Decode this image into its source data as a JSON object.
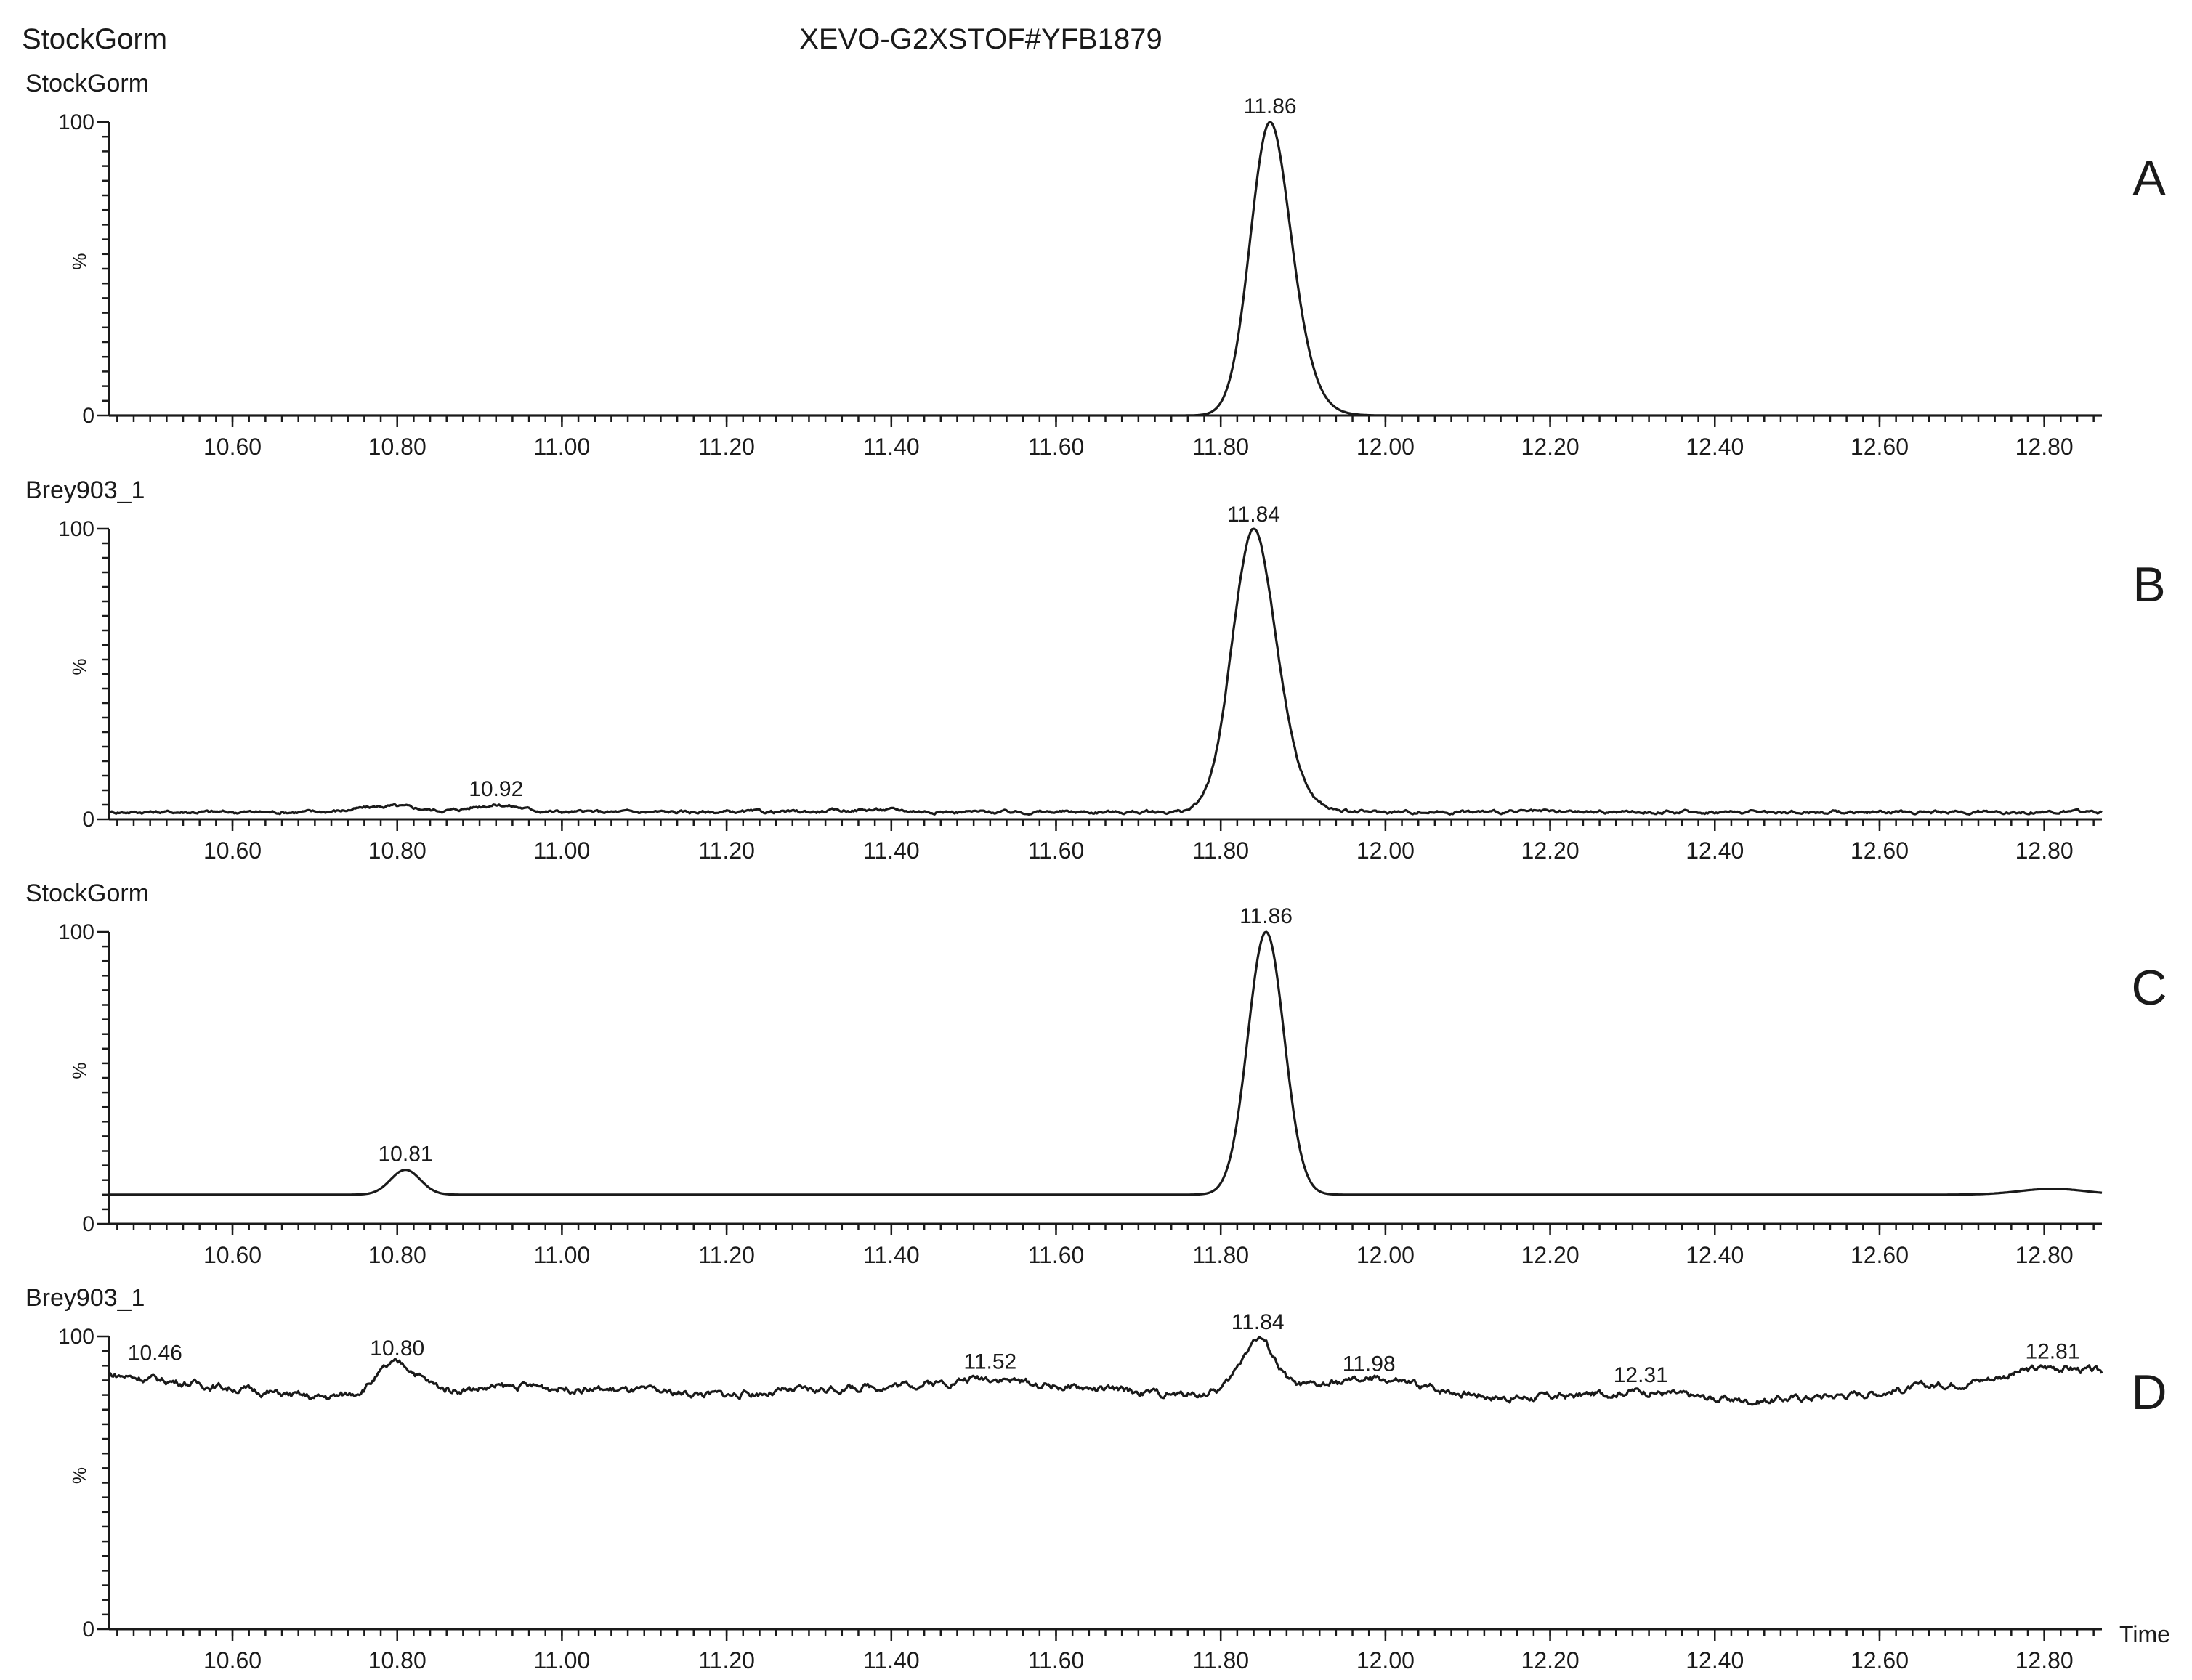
{
  "header": {
    "sample_name": "StockGorm",
    "instrument_title": "XEVO-G2XSTOF#YFB1879"
  },
  "chart_data": [
    {
      "type": "line",
      "panel_letter": "A",
      "trace_label": "StockGorm",
      "xlabel": "",
      "ylabel": "%",
      "xlim": [
        10.45,
        12.87
      ],
      "ylim": [
        0,
        100
      ],
      "x_ticks": [
        10.6,
        10.8,
        11.0,
        11.2,
        11.4,
        11.6,
        11.8,
        12.0,
        12.2,
        12.4,
        12.6,
        12.8
      ],
      "x_tick_labels": [
        "10.60",
        "10.80",
        "11.00",
        "11.20",
        "11.40",
        "11.60",
        "11.80",
        "12.00",
        "12.20",
        "12.40",
        "12.60",
        "12.80"
      ],
      "y_ticks": [
        0,
        100
      ],
      "y_tick_labels": [
        "0",
        "100"
      ],
      "baseline": 0,
      "noise": 0,
      "peaks": [
        {
          "x": 11.86,
          "height": 100,
          "width": 0.024,
          "tail": 0.07,
          "label": "11.86"
        }
      ]
    },
    {
      "type": "line",
      "panel_letter": "B",
      "trace_label": "Brey903_1",
      "xlabel": "",
      "ylabel": "%",
      "xlim": [
        10.45,
        12.87
      ],
      "ylim": [
        0,
        100
      ],
      "x_ticks": [
        10.6,
        10.8,
        11.0,
        11.2,
        11.4,
        11.6,
        11.8,
        12.0,
        12.2,
        12.4,
        12.6,
        12.8
      ],
      "x_tick_labels": [
        "10.60",
        "10.80",
        "11.00",
        "11.20",
        "11.40",
        "11.60",
        "11.80",
        "12.00",
        "12.20",
        "12.40",
        "12.60",
        "12.80"
      ],
      "y_ticks": [
        0,
        100
      ],
      "y_tick_labels": [
        "0",
        "100"
      ],
      "baseline": 2.5,
      "noise": 0.4,
      "peaks": [
        {
          "x": 11.84,
          "height": 97,
          "width": 0.026,
          "tail": 0.06,
          "label": "11.84"
        },
        {
          "x": 10.92,
          "height": 2.5,
          "width": 0.03,
          "label": "10.92"
        },
        {
          "x": 10.79,
          "height": 2.0,
          "width": 0.035,
          "label": ""
        },
        {
          "x": 11.38,
          "height": 0.8,
          "width": 0.04,
          "label": ""
        }
      ]
    },
    {
      "type": "line",
      "panel_letter": "C",
      "trace_label": "StockGorm",
      "xlabel": "",
      "ylabel": "%",
      "xlim": [
        10.45,
        12.87
      ],
      "ylim": [
        0,
        100
      ],
      "x_ticks": [
        10.6,
        10.8,
        11.0,
        11.2,
        11.4,
        11.6,
        11.8,
        12.0,
        12.2,
        12.4,
        12.6,
        12.8
      ],
      "x_tick_labels": [
        "10.60",
        "10.80",
        "11.00",
        "11.20",
        "11.40",
        "11.60",
        "11.80",
        "12.00",
        "12.20",
        "12.40",
        "12.60",
        "12.80"
      ],
      "y_ticks": [
        0,
        100
      ],
      "y_tick_labels": [
        "0",
        "100"
      ],
      "baseline": 10,
      "noise": 0,
      "peaks": [
        {
          "x": 11.855,
          "height": 90,
          "width": 0.022,
          "label": "11.86"
        },
        {
          "x": 10.81,
          "height": 8.5,
          "width": 0.018,
          "label": "10.81"
        },
        {
          "x": 12.81,
          "height": 2.0,
          "width": 0.04,
          "label": ""
        }
      ]
    },
    {
      "type": "line",
      "panel_letter": "D",
      "trace_label": "Brey903_1",
      "xlabel": "Time",
      "ylabel": "%",
      "xlim": [
        10.45,
        12.87
      ],
      "ylim": [
        0,
        100
      ],
      "x_ticks": [
        10.6,
        10.8,
        11.0,
        11.2,
        11.4,
        11.6,
        11.8,
        12.0,
        12.2,
        12.4,
        12.6,
        12.8
      ],
      "x_tick_labels": [
        "10.60",
        "10.80",
        "11.00",
        "11.20",
        "11.40",
        "11.60",
        "11.80",
        "12.00",
        "12.20",
        "12.40",
        "12.60",
        "12.80"
      ],
      "y_ticks": [
        0,
        100
      ],
      "y_tick_labels": [
        "0",
        "100"
      ],
      "baseline_points": [
        [
          10.45,
          87
        ],
        [
          10.55,
          84
        ],
        [
          10.7,
          79
        ],
        [
          10.95,
          83
        ],
        [
          11.2,
          80
        ],
        [
          11.45,
          84
        ],
        [
          11.6,
          83
        ],
        [
          11.75,
          80
        ],
        [
          12.0,
          84
        ],
        [
          12.15,
          79
        ],
        [
          12.3,
          80
        ],
        [
          12.45,
          78
        ],
        [
          12.6,
          81
        ],
        [
          12.75,
          86
        ],
        [
          12.87,
          87
        ]
      ],
      "noise": 0.9,
      "peaks": [
        {
          "x": 10.8,
          "height": 10,
          "width": 0.025,
          "label": "10.80"
        },
        {
          "x": 11.845,
          "height": 18,
          "width": 0.02,
          "label": "11.84"
        },
        {
          "x": 11.52,
          "height": 2.5,
          "width": 0.03,
          "label": "11.52"
        },
        {
          "x": 11.98,
          "height": 1.5,
          "width": 0.04,
          "label": "11.98"
        },
        {
          "x": 12.31,
          "height": 1.5,
          "width": 0.04,
          "label": "12.31"
        },
        {
          "x": 12.81,
          "height": 3,
          "width": 0.035,
          "label": "12.81"
        }
      ],
      "extra_labels": [
        {
          "x": 10.46,
          "value": 87,
          "label": "10.46"
        }
      ]
    }
  ]
}
